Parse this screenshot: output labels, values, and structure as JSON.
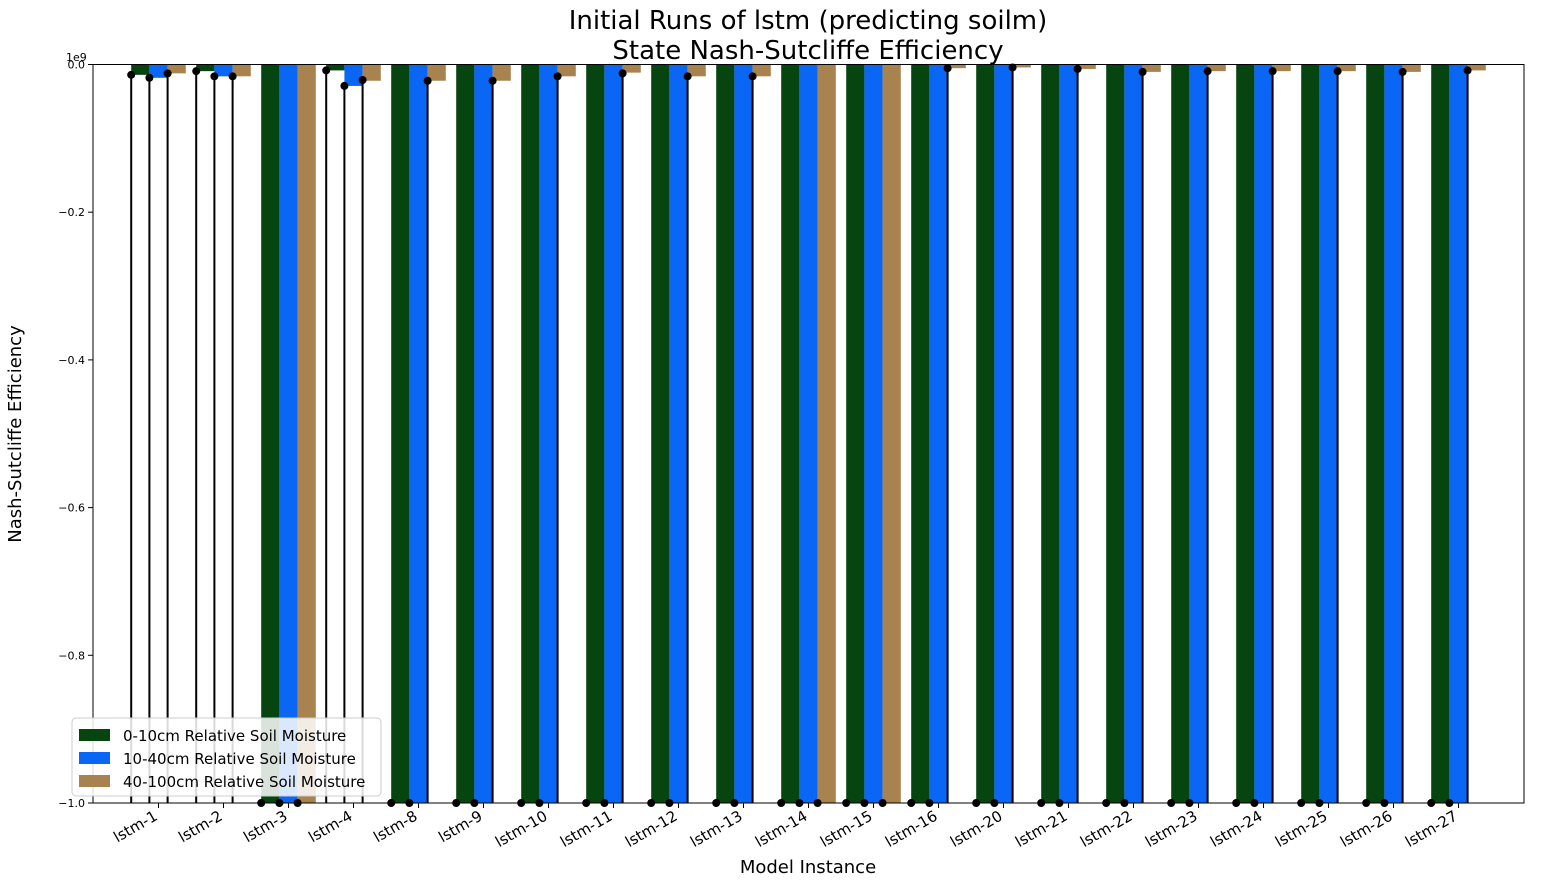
{
  "chart_data": {
    "type": "bar",
    "title_lines": [
      "Initial Runs of lstm (predicting soilm)",
      "State Nash-Sutcliffe Efficiency"
    ],
    "xlabel": "Model Instance",
    "ylabel": "Nash-Sutcliffe Efficiency",
    "offset_text": "1e9",
    "ylim": [
      -1.0,
      0.0
    ],
    "yticks": [
      0.0,
      -0.2,
      -0.4,
      -0.6,
      -0.8,
      -1.0
    ],
    "ytick_labels": [
      "0.0",
      "−0.2",
      "−0.4",
      "−0.6",
      "−0.8",
      "−1.0"
    ],
    "categories": [
      "lstm-1",
      "lstm-2",
      "lstm-3",
      "lstm-4",
      "lstm-8",
      "lstm-9",
      "lstm-10",
      "lstm-11",
      "lstm-12",
      "lstm-13",
      "lstm-14",
      "lstm-15",
      "lstm-16",
      "lstm-20",
      "lstm-21",
      "lstm-22",
      "lstm-23",
      "lstm-24",
      "lstm-25",
      "lstm-26",
      "lstm-27"
    ],
    "series": [
      {
        "name": "0-10cm Relative Soil Moisture",
        "color": "#06450f",
        "values": [
          -0.014,
          -0.009,
          -1.0,
          -0.008,
          -1.0,
          -1.0,
          -1.0,
          -1.0,
          -1.0,
          -1.0,
          -1.0,
          -1.0,
          -1.0,
          -1.0,
          -1.0,
          -1.0,
          -1.0,
          -1.0,
          -1.0,
          -1.0,
          -1.0
        ],
        "point": [
          -0.014,
          -0.009,
          -1.0,
          -0.008,
          -1.0,
          -1.0,
          -1.0,
          -1.0,
          -1.0,
          -1.0,
          -1.0,
          -1.0,
          -1.0,
          -1.0,
          -1.0,
          -1.0,
          -1.0,
          -1.0,
          -1.0,
          -1.0,
          -1.0
        ]
      },
      {
        "name": "10-40cm Relative Soil Moisture",
        "color": "#0a66f5",
        "values": [
          -0.018,
          -0.016,
          -1.0,
          -0.029,
          -1.0,
          -1.0,
          -1.0,
          -1.0,
          -1.0,
          -1.0,
          -1.0,
          -1.0,
          -1.0,
          -1.0,
          -1.0,
          -1.0,
          -1.0,
          -1.0,
          -1.0,
          -1.0,
          -1.0
        ],
        "point": [
          -0.018,
          -0.016,
          -1.0,
          -0.029,
          -1.0,
          -1.0,
          -1.0,
          -1.0,
          -1.0,
          -1.0,
          -1.0,
          -1.0,
          -1.0,
          -1.0,
          -1.0,
          -1.0,
          -1.0,
          -1.0,
          -1.0,
          -1.0,
          -1.0
        ]
      },
      {
        "name": "40-100cm Relative Soil Moisture",
        "color": "#a88350",
        "values": [
          -0.012,
          -0.016,
          -1.0,
          -0.022,
          -0.022,
          -0.022,
          -0.016,
          -0.011,
          -0.016,
          -0.016,
          -1.0,
          -1.0,
          -0.005,
          -0.004,
          -0.006,
          -0.01,
          -0.009,
          -0.009,
          -0.009,
          -0.01,
          -0.008
        ],
        "point": [
          -0.012,
          -0.016,
          -1.0,
          -0.021,
          -0.022,
          -0.022,
          -0.016,
          -0.012,
          -0.016,
          -0.016,
          -1.0,
          -1.0,
          -0.005,
          -0.004,
          -0.006,
          -0.01,
          -0.009,
          -0.009,
          -0.009,
          -0.01,
          -0.008
        ]
      }
    ],
    "legend_placement": "lower-left",
    "grid": false
  }
}
